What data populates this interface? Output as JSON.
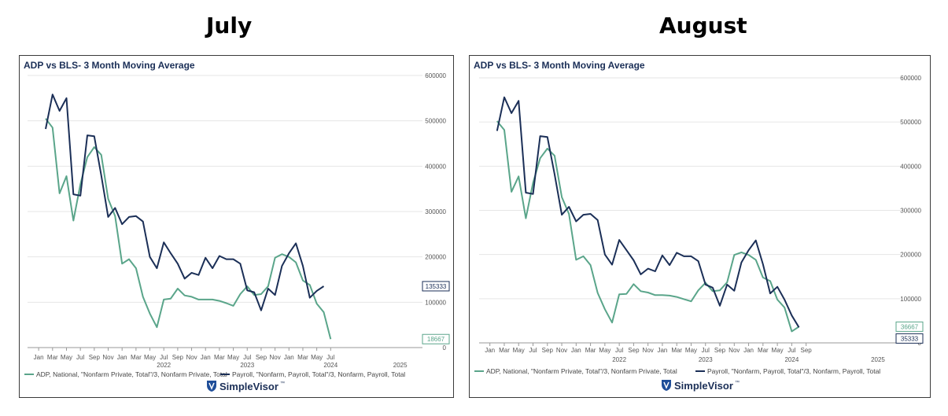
{
  "headings": [
    "July",
    "August"
  ],
  "colors": {
    "adp": "#5aa58a",
    "payroll": "#1b2f57",
    "title": "#1b2f57",
    "grid": "#e6e6e6",
    "brand": "#1f4e99"
  },
  "chart_data": [
    {
      "type": "line",
      "title": "ADP vs BLS- 3 Month Moving Average",
      "yticks": [
        "600000",
        "500000",
        "400000",
        "300000",
        "200000",
        "100000",
        "0"
      ],
      "ylim": [
        0,
        600000
      ],
      "xlim": [
        "Jan 2021",
        "Jul 2025"
      ],
      "month_ticks": [
        "Jan",
        "Mar",
        "May",
        "Jul",
        "Sep",
        "Nov",
        "Jan",
        "Mar",
        "May",
        "Jul",
        "Sep",
        "Nov",
        "Jan",
        "Mar",
        "May",
        "Jul",
        "Sep",
        "Nov",
        "Jan",
        "Mar",
        "May",
        "Jul"
      ],
      "year_ticks": [
        {
          "label": "2022",
          "at": "Jul 2022"
        },
        {
          "label": "2023",
          "at": "Jul 2023"
        },
        {
          "label": "2024",
          "at": "Jul 2024"
        },
        {
          "label": "2025",
          "at": "May 2025"
        }
      ],
      "grid": true,
      "legend_position": "bottom",
      "series": [
        {
          "name": "ADP, National, \"Nonfarm Private, Total\"/3, Nonfarm Private, Total",
          "color": "#5aa58a",
          "start": "Feb 2021",
          "values": [
            505000,
            485000,
            340000,
            378000,
            280000,
            360000,
            420000,
            442000,
            425000,
            328000,
            290000,
            185000,
            195000,
            175000,
            112000,
            75000,
            45000,
            106000,
            108000,
            130000,
            115000,
            112000,
            106000,
            106000,
            106000,
            103000,
            98000,
            92000,
            118000,
            135000,
            116000,
            118000,
            135000,
            198000,
            206000,
            200000,
            188000,
            148000,
            138000,
            97000,
            78000,
            18667
          ],
          "end_label": "18667"
        },
        {
          "name": "Payroll, \"Nonfarm, Payroll, Total\"/3, Nonfarm, Payroll, Total",
          "color": "#1b2f57",
          "start": "Feb 2021",
          "values": [
            482000,
            558000,
            522000,
            550000,
            338000,
            335000,
            468000,
            466000,
            380000,
            288000,
            308000,
            272000,
            288000,
            290000,
            278000,
            200000,
            175000,
            232000,
            208000,
            185000,
            152000,
            165000,
            160000,
            198000,
            175000,
            202000,
            195000,
            195000,
            185000,
            126000,
            122000,
            82000,
            130000,
            116000,
            180000,
            208000,
            230000,
            180000,
            110000,
            125000,
            135333
          ],
          "end_label": "135333"
        }
      ]
    },
    {
      "type": "line",
      "title": "ADP vs BLS- 3 Month Moving Average",
      "yticks": [
        "600000",
        "500000",
        "400000",
        "300000",
        "200000",
        "100000",
        "0"
      ],
      "ylim": [
        0,
        600000
      ],
      "xlim": [
        "Jan 2021",
        "Sep 2025"
      ],
      "month_ticks": [
        "Jan",
        "Mar",
        "May",
        "Jul",
        "Sep",
        "Nov",
        "Jan",
        "Mar",
        "May",
        "Jul",
        "Sep",
        "Nov",
        "Jan",
        "Mar",
        "May",
        "Jul",
        "Sep",
        "Nov",
        "Jan",
        "Mar",
        "May",
        "Jul",
        "Sep"
      ],
      "year_ticks": [
        {
          "label": "2022",
          "at": "Jul 2022"
        },
        {
          "label": "2023",
          "at": "Jul 2023"
        },
        {
          "label": "2024",
          "at": "Jul 2024"
        },
        {
          "label": "2025",
          "at": "Jul 2025"
        }
      ],
      "grid": true,
      "legend_position": "bottom",
      "series": [
        {
          "name": "ADP, National, \"Nonfarm Private, Total\"/3, Nonfarm Private, Total",
          "color": "#5aa58a",
          "start": "Feb 2021",
          "values": [
            502000,
            482000,
            342000,
            377000,
            282000,
            362000,
            418000,
            440000,
            424000,
            330000,
            292000,
            188000,
            196000,
            176000,
            113000,
            76000,
            46000,
            110000,
            111000,
            133000,
            117000,
            114000,
            108000,
            108000,
            107000,
            104000,
            99000,
            94000,
            119000,
            136000,
            117000,
            119000,
            137000,
            199000,
            205000,
            199000,
            188000,
            148000,
            140000,
            98000,
            80000,
            26000,
            36667
          ],
          "end_label": "36667"
        },
        {
          "name": "Payroll, \"Nonfarm, Payroll, Total\"/3, Nonfarm, Payroll, Total",
          "color": "#1b2f57",
          "start": "Feb 2021",
          "values": [
            480000,
            556000,
            520000,
            548000,
            340000,
            337000,
            468000,
            466000,
            382000,
            290000,
            308000,
            275000,
            290000,
            292000,
            278000,
            200000,
            177000,
            233000,
            210000,
            187000,
            155000,
            168000,
            162000,
            198000,
            176000,
            204000,
            196000,
            196000,
            185000,
            132000,
            125000,
            84000,
            132000,
            118000,
            182000,
            210000,
            232000,
            178000,
            112000,
            127000,
            98000,
            62000,
            35333
          ],
          "end_label": "35333"
        }
      ]
    }
  ],
  "brand": "SimpleVisor",
  "brand_tm": "™"
}
